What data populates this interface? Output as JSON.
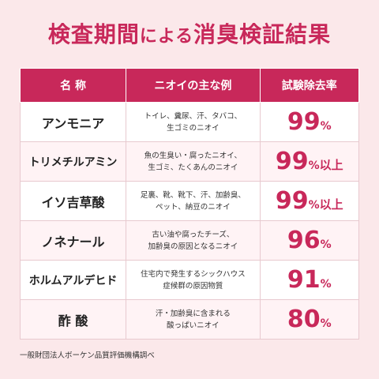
{
  "title": {
    "main": "検査期間",
    "particle": "による",
    "rest": "消臭検証結果"
  },
  "header": {
    "name": "名 称",
    "examples": "ニオイの主な例",
    "rate": "試験除去率"
  },
  "rows": [
    {
      "name": "アンモニア",
      "ex1": "トイレ、糞尿、汗、タバコ、",
      "ex2": "生ゴミのニオイ",
      "rate": "99",
      "unit": "%",
      "suffix": ""
    },
    {
      "name": "トリメチルアミン",
      "ex1": "魚の生臭い・腐ったニオイ、",
      "ex2": "生ゴミ、たくあんのニオイ",
      "rate": "99",
      "unit": "%",
      "suffix": "以上"
    },
    {
      "name": "イソ吉草酸",
      "ex1": "足裏、靴、靴下、汗、加齢臭、",
      "ex2": "ペット、納豆のニオイ",
      "rate": "99",
      "unit": "%",
      "suffix": "以上"
    },
    {
      "name": "ノネナール",
      "ex1": "古い油や腐ったチーズ、",
      "ex2": "加齢臭の原因となるニオイ",
      "rate": "96",
      "unit": "%",
      "suffix": ""
    },
    {
      "name": "ホルムアルデヒド",
      "ex1": "住宅内で発生するシックハウス",
      "ex2": "症候群の原因物質",
      "rate": "91",
      "unit": "%",
      "suffix": ""
    },
    {
      "name": "酢 酸",
      "ex1": "汗・加齢臭に含まれる",
      "ex2": "酸っぱいニオイ",
      "rate": "80",
      "unit": "%",
      "suffix": ""
    }
  ],
  "footnote": "一般財団法人ボーケン品質評価機構調べ"
}
